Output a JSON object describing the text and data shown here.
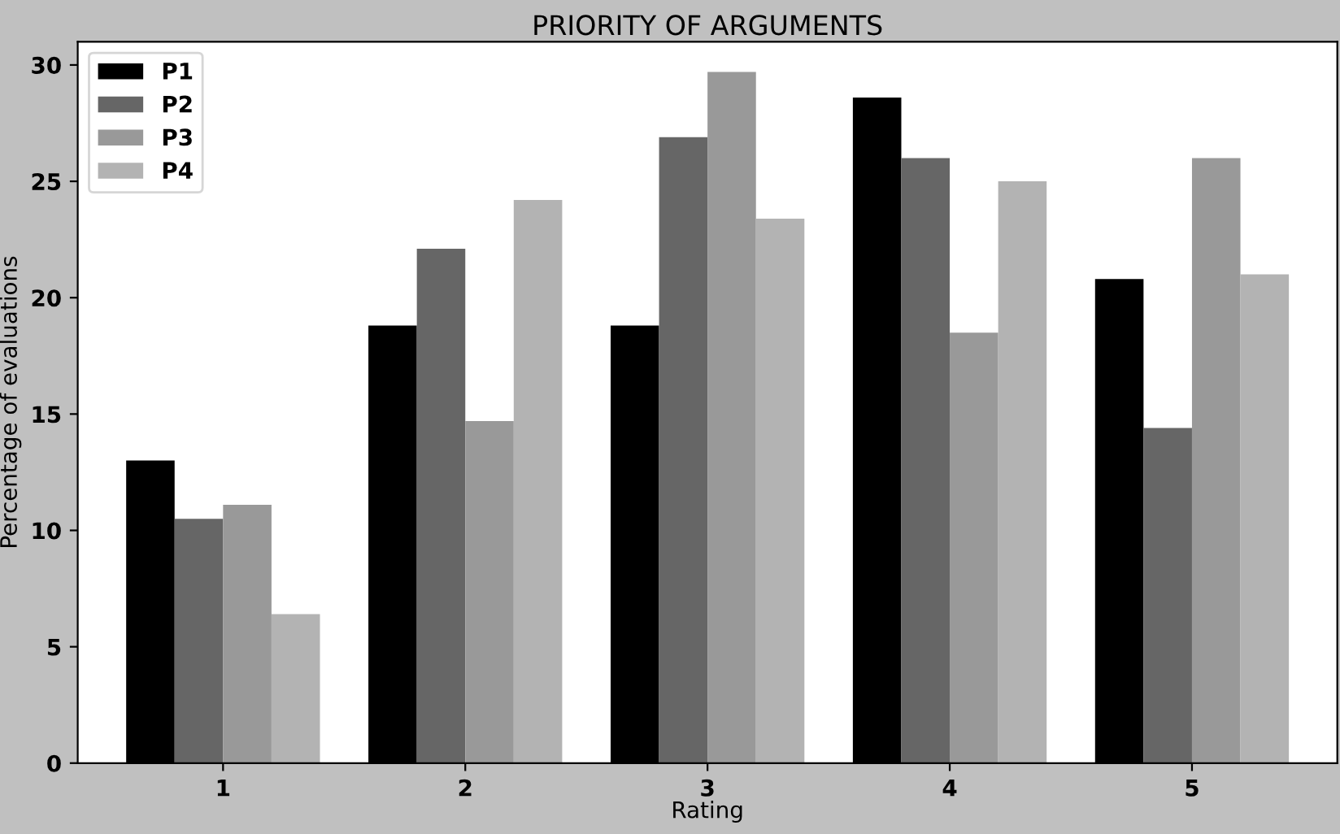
{
  "chart_data": {
    "type": "bar",
    "title": "PRIORITY OF ARGUMENTS",
    "xlabel": "Rating",
    "ylabel": "Percentage of evaluations",
    "categories": [
      "1",
      "2",
      "3",
      "4",
      "5"
    ],
    "series": [
      {
        "name": "P1",
        "color": "#000000",
        "values": [
          13.0,
          18.8,
          18.8,
          28.6,
          20.8
        ]
      },
      {
        "name": "P2",
        "color": "#666666",
        "values": [
          10.5,
          22.1,
          26.9,
          26.0,
          14.4
        ]
      },
      {
        "name": "P3",
        "color": "#999999",
        "values": [
          11.1,
          14.7,
          29.7,
          18.5,
          26.0
        ]
      },
      {
        "name": "P4",
        "color": "#b3b3b3",
        "values": [
          6.4,
          24.2,
          23.4,
          25.0,
          21.0
        ]
      }
    ],
    "ylim": [
      0,
      31
    ],
    "yticks": [
      0,
      5,
      10,
      15,
      20,
      25,
      30
    ],
    "grid": false,
    "legend": "top left"
  }
}
